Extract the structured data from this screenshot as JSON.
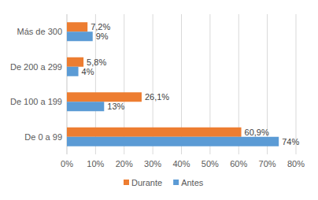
{
  "chart_data": {
    "type": "bar",
    "orientation": "horizontal",
    "categories": [
      "De 0 a 99",
      "De 100 a 199",
      "De 200 a 299",
      "Más de 300"
    ],
    "series": [
      {
        "name": "Durante",
        "color": "#ed7d31",
        "values": [
          60.9,
          26.1,
          5.8,
          7.2
        ],
        "value_labels": [
          "60,9%",
          "26,1%",
          "5,8%",
          "7,2%"
        ]
      },
      {
        "name": "Antes",
        "color": "#5b9bd5",
        "values": [
          74,
          13,
          4,
          9
        ],
        "value_labels": [
          "74%",
          "13%",
          "4%",
          "9%"
        ]
      }
    ],
    "xlim": [
      0,
      80
    ],
    "xticks": [
      {
        "value": 0,
        "label": "0%"
      },
      {
        "value": 10,
        "label": "10%"
      },
      {
        "value": 20,
        "label": "20%"
      },
      {
        "value": 30,
        "label": "30%"
      },
      {
        "value": 40,
        "label": "40%"
      },
      {
        "value": 50,
        "label": "50%"
      },
      {
        "value": 60,
        "label": "60%"
      },
      {
        "value": 70,
        "label": "70%"
      },
      {
        "value": 80,
        "label": "80%"
      }
    ],
    "grid": true,
    "legend": "bottom",
    "data_labels": true
  }
}
